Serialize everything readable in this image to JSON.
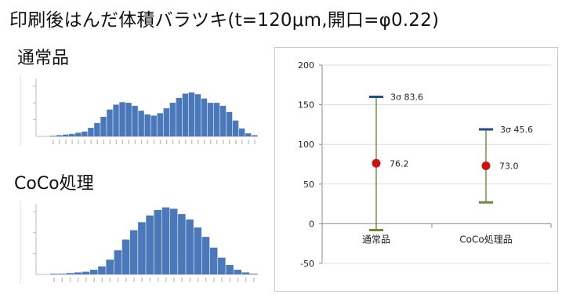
{
  "title": "印刷後はんだ体積バラツキ(t=120μm,開口=φ0.22)",
  "labels": {
    "normal": "通常品",
    "coco": "CoCo処理"
  },
  "colors": {
    "bar": "#4a78b8",
    "mean_dot": "#cc1111",
    "sigma_cap": "#1f4e8c",
    "range_line": "#6a8a3a"
  },
  "chart_data": [
    {
      "type": "bar",
      "name": "hist-normal",
      "values": [
        1,
        2,
        3,
        4,
        6,
        8,
        14,
        22,
        32,
        44,
        52,
        56,
        55,
        50,
        42,
        36,
        34,
        38,
        46,
        55,
        63,
        70,
        72,
        69,
        62,
        55,
        55,
        50,
        40,
        26,
        13,
        5,
        2
      ],
      "ylim": [
        0,
        100
      ]
    },
    {
      "type": "bar",
      "name": "hist-coco",
      "values": [
        1,
        1,
        2,
        3,
        4,
        7,
        12,
        22,
        36,
        52,
        66,
        78,
        88,
        96,
        100,
        98,
        90,
        82,
        70,
        56,
        40,
        25,
        14,
        7,
        3,
        1
      ],
      "ylim": [
        0,
        110
      ]
    },
    {
      "type": "scatter",
      "name": "variation-summary",
      "categories": [
        "通常品",
        "CoCo処理品"
      ],
      "ylim": [
        -50,
        200
      ],
      "yticks": [
        -50,
        0,
        50,
        100,
        150,
        200
      ],
      "mean": [
        76.2,
        73.0
      ],
      "upper": [
        160,
        119
      ],
      "lower": [
        -8,
        27
      ],
      "sigma_labels": [
        "3σ  83.6",
        "3σ  45.6"
      ],
      "mean_labels": [
        "76.2",
        "73.0"
      ]
    }
  ]
}
